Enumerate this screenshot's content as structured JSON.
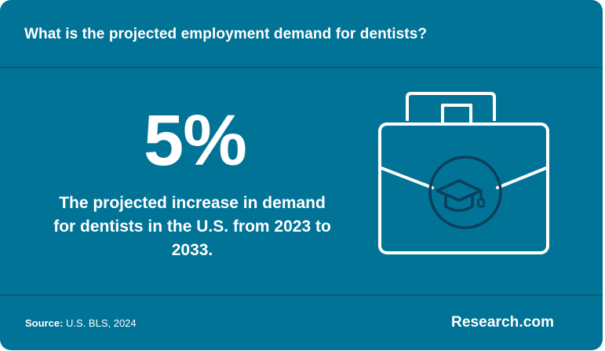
{
  "header": {
    "question": "What is the projected employment demand for dentists?"
  },
  "stat": {
    "value": "5%",
    "description": "The projected increase in demand for dentists in the U.S. from 2023 to 2033."
  },
  "illustration": {
    "icon": "briefcase-graduation-cap-icon"
  },
  "footer": {
    "source_label": "Source:",
    "source_text": "U.S. BLS, 2024",
    "brand": "Research.com"
  },
  "colors": {
    "background": "#007396",
    "divider": "#0d5a75",
    "icon_line": "#ffffff",
    "icon_circle": "#0d3e5a",
    "text": "#ffffff"
  }
}
